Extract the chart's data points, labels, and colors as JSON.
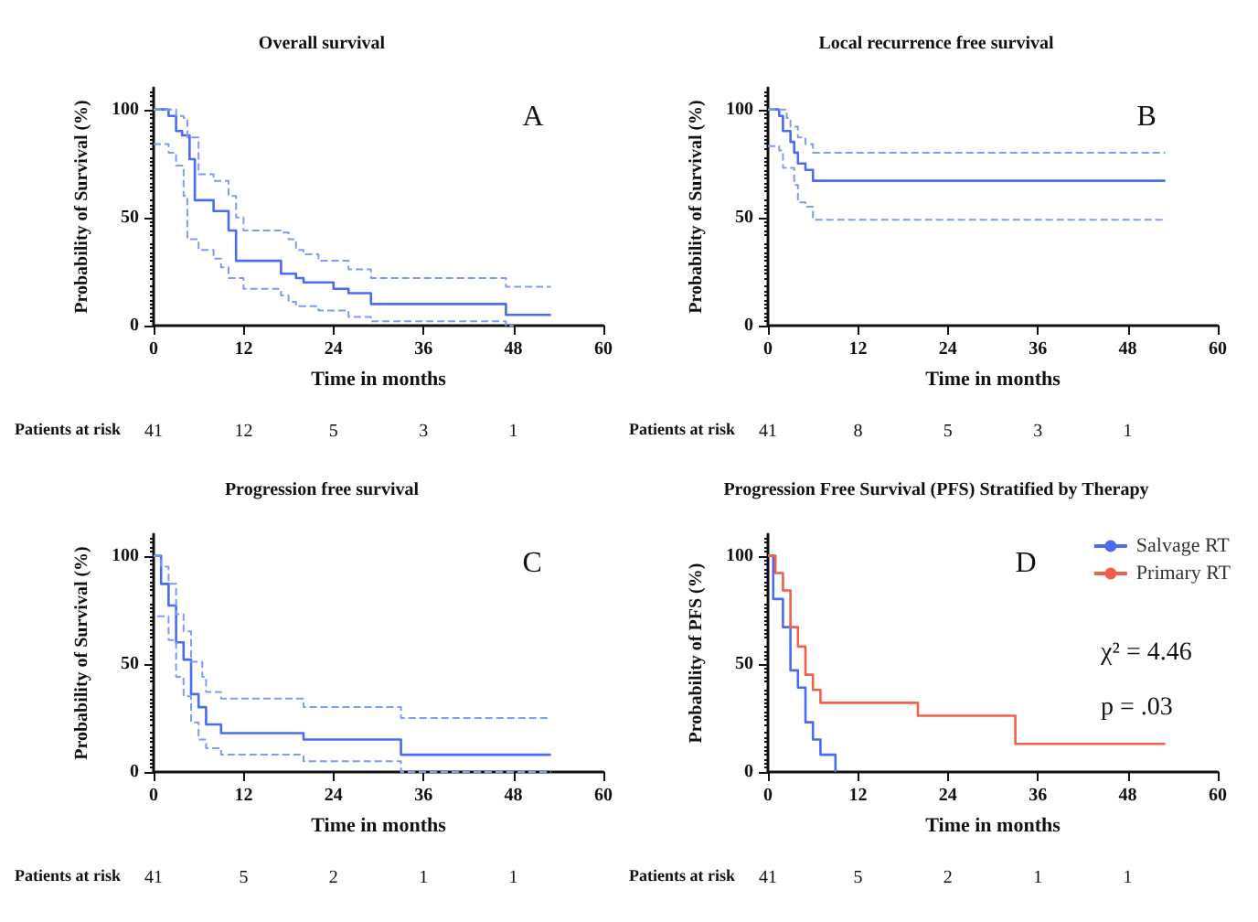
{
  "chart_data": [
    {
      "type": "step",
      "title": "Overall survival",
      "xlabel": "Time in months",
      "ylabel": "Probability of Survival (%)",
      "xlim": [
        0,
        60
      ],
      "xticks": [
        0,
        12,
        24,
        36,
        48,
        60
      ],
      "ylim": [
        0,
        110
      ],
      "yticks": [
        0,
        50,
        100
      ],
      "grid": false,
      "legend": false,
      "annotations": [
        "A",
        "Patients at risk",
        "41",
        "12",
        "5",
        "3",
        "1"
      ],
      "series": [
        {
          "color": "#4a6cf0",
          "line_style": "solid",
          "x": [
            0,
            2,
            3,
            3.8,
            4.8,
            5.5,
            8,
            10,
            11,
            17,
            19,
            20,
            24,
            26,
            29,
            47,
            53
          ],
          "values": [
            100,
            97,
            90,
            88,
            77,
            58,
            53,
            44,
            30,
            24,
            22,
            20,
            17,
            15,
            10,
            5,
            5
          ]
        },
        {
          "color": "#7f9cf5",
          "line_style": "dashed",
          "x": [
            0,
            3,
            4,
            4.5,
            6,
            8,
            10,
            11,
            12,
            17,
            18,
            19,
            20,
            22,
            26,
            29,
            47,
            53
          ],
          "values": [
            100,
            97,
            96,
            87,
            70,
            67,
            60,
            50,
            44,
            43,
            40,
            35,
            33,
            30,
            26,
            22,
            18,
            18
          ]
        },
        {
          "color": "#7f9cf5",
          "line_style": "dashed",
          "x": [
            0,
            2,
            3,
            4,
            4.5,
            6,
            8,
            9,
            10,
            12,
            17,
            18,
            19,
            22,
            26,
            29,
            47,
            48
          ],
          "values": [
            84,
            80,
            74,
            60,
            40,
            35,
            31,
            27,
            22,
            17,
            14,
            11,
            9,
            7,
            4,
            2,
            0,
            0
          ]
        }
      ]
    },
    {
      "type": "step",
      "title": "Local recurrence free survival",
      "xlabel": "Time in months",
      "ylabel": "Probability of Survival (%)",
      "xlim": [
        0,
        60
      ],
      "xticks": [
        0,
        12,
        24,
        36,
        48,
        60
      ],
      "ylim": [
        0,
        110
      ],
      "yticks": [
        0,
        50,
        100
      ],
      "grid": false,
      "legend": false,
      "annotations": [
        "B",
        "Patients at risk",
        "41",
        "8",
        "5",
        "3",
        "1"
      ],
      "series": [
        {
          "color": "#4a6cf0",
          "line_style": "solid",
          "x": [
            0,
            1.5,
            2,
            3,
            3.5,
            4,
            5,
            6,
            53
          ],
          "values": [
            100,
            97,
            90,
            85,
            80,
            75,
            72,
            67,
            67
          ]
        },
        {
          "color": "#7f9cf5",
          "line_style": "dashed",
          "x": [
            0,
            2,
            2.5,
            3,
            4,
            5,
            6,
            53
          ],
          "values": [
            100,
            100,
            96,
            92,
            87,
            84,
            80,
            80
          ]
        },
        {
          "color": "#7f9cf5",
          "line_style": "dashed",
          "x": [
            0,
            1.5,
            2,
            3.5,
            4,
            5,
            6,
            53
          ],
          "values": [
            83,
            81,
            73,
            65,
            57,
            55,
            49,
            49
          ]
        }
      ]
    },
    {
      "type": "step",
      "title": "Progression free survival",
      "xlabel": "Time in months",
      "ylabel": "Probability of Survival (%)",
      "xlim": [
        0,
        60
      ],
      "xticks": [
        0,
        12,
        24,
        36,
        48,
        60
      ],
      "ylim": [
        0,
        110
      ],
      "yticks": [
        0,
        50,
        100
      ],
      "grid": false,
      "legend": false,
      "annotations": [
        "C",
        "Patients at risk",
        "41",
        "5",
        "2",
        "1",
        "1"
      ],
      "series": [
        {
          "color": "#4a6cf0",
          "line_style": "solid",
          "x": [
            0,
            1,
            2,
            3,
            4,
            5,
            6,
            7,
            9,
            20,
            33,
            53
          ],
          "values": [
            100,
            87,
            77,
            60,
            52,
            36,
            30,
            22,
            18,
            15,
            8,
            8
          ]
        },
        {
          "color": "#7f9cf5",
          "line_style": "dashed",
          "x": [
            0,
            1,
            2,
            3,
            4,
            5,
            6.5,
            7,
            9,
            20,
            33,
            53
          ],
          "values": [
            100,
            95,
            87,
            73,
            65,
            51,
            44,
            37,
            34,
            30,
            25,
            25
          ]
        },
        {
          "color": "#7f9cf5",
          "line_style": "dashed",
          "x": [
            0.5,
            2,
            3,
            4,
            5,
            6,
            7,
            9,
            20,
            33,
            53
          ],
          "values": [
            72,
            61,
            44,
            35,
            23,
            15,
            11,
            8,
            5,
            0,
            0
          ]
        }
      ]
    },
    {
      "type": "step",
      "title": "Progression Free Survival (PFS) Stratified by Therapy",
      "xlabel": "Time in months",
      "ylabel": "Probability of PFS (%)",
      "xlim": [
        0,
        60
      ],
      "xticks": [
        0,
        12,
        24,
        36,
        48,
        60
      ],
      "ylim": [
        0,
        110
      ],
      "yticks": [
        0,
        50,
        100
      ],
      "grid": false,
      "legend": "top right",
      "annotations": [
        "D",
        "χ² = 4.46",
        "p = .03",
        "Patients at risk",
        "41",
        "5",
        "2",
        "1",
        "1"
      ],
      "series": [
        {
          "name": "Salvage RT",
          "color": "#4a6cf0",
          "line_style": "solid",
          "x": [
            0,
            0.7,
            2,
            3,
            4,
            5,
            6,
            7,
            9
          ],
          "values": [
            100,
            80,
            67,
            47,
            39,
            23,
            15,
            8,
            0
          ]
        },
        {
          "name": "Primary RT",
          "color": "#f0604a",
          "line_style": "solid",
          "x": [
            0,
            1,
            2,
            3,
            4,
            5,
            6,
            7,
            20,
            33,
            53
          ],
          "values": [
            100,
            92,
            84,
            67,
            58,
            45,
            38,
            32,
            26,
            13,
            13
          ]
        }
      ]
    }
  ]
}
